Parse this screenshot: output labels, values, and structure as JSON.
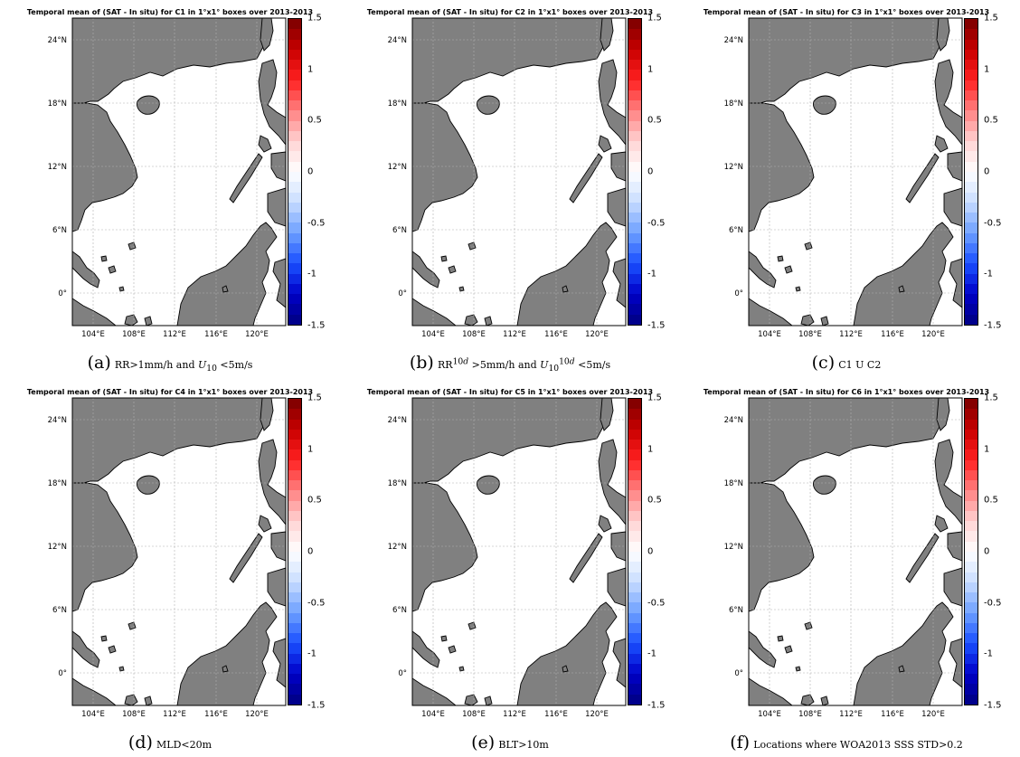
{
  "panels": [
    {
      "title": "Temporal mean of (SAT - In situ) for C1 in 1°x1° boxes over 2013-2013",
      "label": "(a)",
      "caption_html": "RR&gt;1mm/h and <i>U</i><sub>10</sub> &lt;5m/s"
    },
    {
      "title": "Temporal mean of (SAT - In situ) for C2 in 1°x1° boxes over 2013-2013",
      "label": "(b)",
      "caption_html": "RR<sup>10<i>d</i></sup> &gt;5mm/h and <i>U</i><sub>10</sub><sup>10<i>d</i></sup> &lt;5m/s"
    },
    {
      "title": "Temporal mean of (SAT - In situ) for C3 in 1°x1° boxes over 2013-2013",
      "label": "(c)",
      "caption_html": "C1 U C2"
    },
    {
      "title": "Temporal mean of (SAT - In situ) for C4 in 1°x1° boxes over 2013-2013",
      "label": "(d)",
      "caption_html": "MLD&lt;20m"
    },
    {
      "title": "Temporal mean of (SAT - In situ) for C5 in 1°x1° boxes over 2013-2013",
      "label": "(e)",
      "caption_html": "BLT&gt;10m"
    },
    {
      "title": "Temporal mean of (SAT - In situ) for C6 in 1°x1° boxes over 2013-2013",
      "label": "(f)",
      "caption_html": "Locations where WOA2013 SSS STD&gt;0.2"
    }
  ],
  "map": {
    "x_ticks": [
      "104°E",
      "108°E",
      "112°E",
      "116°E",
      "120°E"
    ],
    "y_ticks": [
      "24°N",
      "18°N",
      "12°N",
      "6°N",
      "0°"
    ],
    "land_color": "#808080",
    "ocean_color": "#ffffff",
    "grid": true
  },
  "colorbar": {
    "ticks": [
      "1.5",
      "1",
      "0.5",
      "0",
      "-0.5",
      "-1",
      "-1.5"
    ],
    "range": [
      -1.5,
      1.5
    ],
    "steps": 30,
    "colors": [
      "#000080",
      "#0000c8",
      "#1a50ff",
      "#6ea0ff",
      "#c8dcff",
      "#ffffff",
      "#ffd2d2",
      "#ff8080",
      "#ff2020",
      "#c80000",
      "#780000"
    ]
  }
}
